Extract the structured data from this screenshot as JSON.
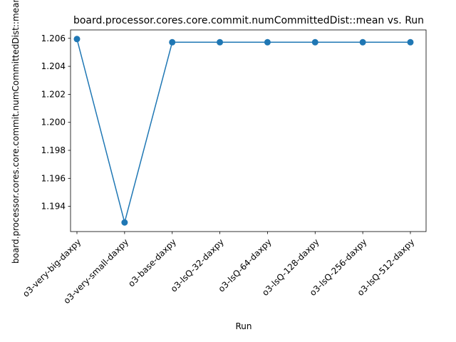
{
  "chart_data": {
    "type": "line",
    "title": "board.processor.cores.core.commit.numCommittedDist::mean vs. Run",
    "xlabel": "Run",
    "ylabel": "board.processor.cores.core.commit.numCommittedDist::mean",
    "categories": [
      "o3-very-big-daxpy",
      "o3-very-small-daxpy",
      "o3-base-daxpy",
      "o3-lsQ-32-daxpy",
      "o3-lsQ-64-daxpy",
      "o3-lsQ-128-daxpy",
      "o3-lsQ-256-daxpy",
      "o3-lsQ-512-daxpy"
    ],
    "values": [
      1.20595,
      1.19285,
      1.20572,
      1.20572,
      1.20572,
      1.20572,
      1.20572,
      1.20572
    ],
    "ylim": [
      1.1922,
      1.2066
    ],
    "yticks": [
      "1.194",
      "1.196",
      "1.198",
      "1.200",
      "1.202",
      "1.204",
      "1.206"
    ],
    "ytick_values": [
      1.194,
      1.196,
      1.198,
      1.2,
      1.202,
      1.204,
      1.206
    ],
    "grid": false,
    "color": "#1f77b4"
  }
}
